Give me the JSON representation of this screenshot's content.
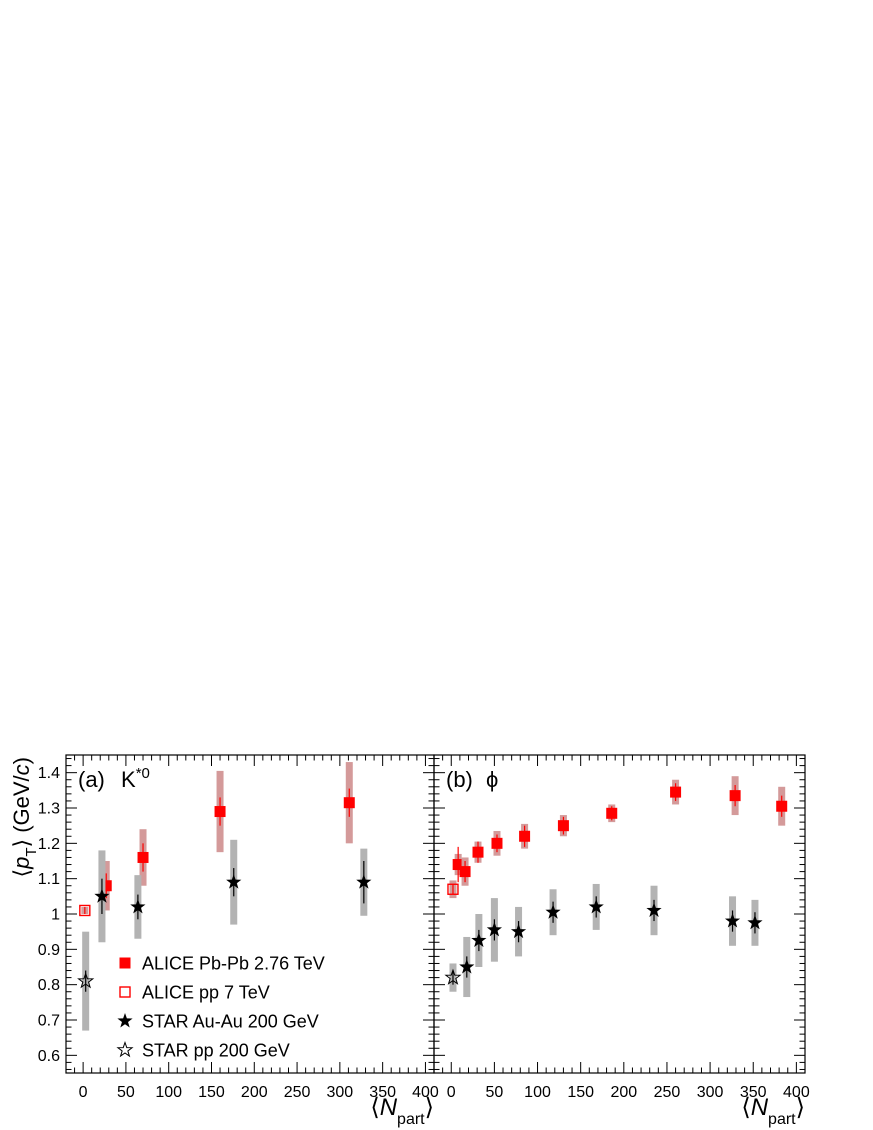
{
  "chart_data": [
    {
      "type": "scatter",
      "panel_label": "(a)",
      "particle": "K*0",
      "particle_base": "K",
      "particle_sup": "*0",
      "ylabel_parts": [
        "⟨",
        "p",
        "T",
        "⟩ (GeV/",
        "c",
        ")"
      ],
      "xlabel_parts": [
        "⟨",
        "N",
        "part",
        "⟩"
      ],
      "xlim": [
        -20,
        410
      ],
      "ylim": [
        0.55,
        1.45
      ],
      "xticks": [
        "0",
        "50",
        "100",
        "150",
        "200",
        "250",
        "300",
        "350",
        "400"
      ],
      "yticks": [
        "0.6",
        "0.7",
        "0.8",
        "0.9",
        "1",
        "1.1",
        "1.2",
        "1.3",
        "1.4"
      ],
      "legend": [
        {
          "marker": "filled-square",
          "color": "#ff0000",
          "label": "ALICE Pb-Pb 2.76 TeV"
        },
        {
          "marker": "open-square",
          "color": "#ff0000",
          "label": "ALICE pp 7 TeV"
        },
        {
          "marker": "filled-star",
          "color": "#000000",
          "label": "STAR Au-Au 200 GeV"
        },
        {
          "marker": "open-star",
          "color": "#000000",
          "label": "STAR pp 200 GeV"
        }
      ],
      "series": [
        {
          "name": "ALICE Pb-Pb 2.76 TeV",
          "marker": "filled-square",
          "color": "#ff0000",
          "syst_color": "#d49a9a",
          "points": [
            {
              "x": 27,
              "y": 1.08,
              "stat": 0.035,
              "syst": 0.07
            },
            {
              "x": 70,
              "y": 1.16,
              "stat": 0.04,
              "syst": 0.08
            },
            {
              "x": 160,
              "y": 1.29,
              "stat": 0.04,
              "syst": 0.115
            },
            {
              "x": 311,
              "y": 1.315,
              "stat": 0.04,
              "syst": 0.115
            }
          ]
        },
        {
          "name": "ALICE pp 7 TeV",
          "marker": "open-square",
          "color": "#ff0000",
          "syst_color": "#d49a9a",
          "points": [
            {
              "x": 2,
              "y": 1.01,
              "stat": 0.01,
              "syst": 0.01
            }
          ]
        },
        {
          "name": "STAR Au-Au 200 GeV",
          "marker": "filled-star",
          "color": "#000000",
          "syst_color": "#b3b3b3",
          "points": [
            {
              "x": 22,
              "y": 1.05,
              "stat": 0.05,
              "syst": 0.13
            },
            {
              "x": 64,
              "y": 1.02,
              "stat": 0.035,
              "syst": 0.09
            },
            {
              "x": 176,
              "y": 1.09,
              "stat": 0.04,
              "syst": 0.12
            },
            {
              "x": 328,
              "y": 1.09,
              "stat": 0.06,
              "syst": 0.095
            }
          ]
        },
        {
          "name": "STAR pp 200 GeV",
          "marker": "open-star",
          "color": "#000000",
          "syst_color": "#b3b3b3",
          "points": [
            {
              "x": 3,
              "y": 0.81,
              "stat": 0.03,
              "syst": 0.14
            }
          ]
        }
      ]
    },
    {
      "type": "scatter",
      "panel_label": "(b)",
      "particle": "ϕ",
      "xlabel_parts": [
        "⟨",
        "N",
        "part",
        "⟩"
      ],
      "xlim": [
        -20,
        410
      ],
      "ylim": [
        0.55,
        1.45
      ],
      "xticks": [
        "0",
        "50",
        "100",
        "150",
        "200",
        "250",
        "300",
        "350",
        "400"
      ],
      "series": [
        {
          "name": "ALICE Pb-Pb 2.76 TeV",
          "marker": "filled-square",
          "color": "#ff0000",
          "syst_color": "#d49a9a",
          "points": [
            {
              "x": 8,
              "y": 1.14,
              "stat": 0.05,
              "syst": 0.03
            },
            {
              "x": 16,
              "y": 1.12,
              "stat": 0.03,
              "syst": 0.04
            },
            {
              "x": 31,
              "y": 1.175,
              "stat": 0.03,
              "syst": 0.03
            },
            {
              "x": 53,
              "y": 1.2,
              "stat": 0.025,
              "syst": 0.035
            },
            {
              "x": 85,
              "y": 1.22,
              "stat": 0.03,
              "syst": 0.035
            },
            {
              "x": 130,
              "y": 1.25,
              "stat": 0.025,
              "syst": 0.03
            },
            {
              "x": 186,
              "y": 1.285,
              "stat": 0.02,
              "syst": 0.025
            },
            {
              "x": 260,
              "y": 1.345,
              "stat": 0.025,
              "syst": 0.035
            },
            {
              "x": 329,
              "y": 1.335,
              "stat": 0.03,
              "syst": 0.055
            },
            {
              "x": 383,
              "y": 1.305,
              "stat": 0.03,
              "syst": 0.055
            }
          ]
        },
        {
          "name": "ALICE pp 7 TeV",
          "marker": "open-square",
          "color": "#ff0000",
          "syst_color": "#d49a9a",
          "points": [
            {
              "x": 2,
              "y": 1.07,
              "stat": 0.015,
              "syst": 0.025
            }
          ]
        },
        {
          "name": "STAR Au-Au 200 GeV",
          "marker": "filled-star",
          "color": "#000000",
          "syst_color": "#b3b3b3",
          "points": [
            {
              "x": 18,
              "y": 0.85,
              "stat": 0.03,
              "syst": 0.085
            },
            {
              "x": 32,
              "y": 0.925,
              "stat": 0.03,
              "syst": 0.075
            },
            {
              "x": 50,
              "y": 0.955,
              "stat": 0.03,
              "syst": 0.09
            },
            {
              "x": 78,
              "y": 0.95,
              "stat": 0.03,
              "syst": 0.07
            },
            {
              "x": 118,
              "y": 1.005,
              "stat": 0.03,
              "syst": 0.065
            },
            {
              "x": 168,
              "y": 1.02,
              "stat": 0.03,
              "syst": 0.065
            },
            {
              "x": 235,
              "y": 1.01,
              "stat": 0.03,
              "syst": 0.07
            },
            {
              "x": 326,
              "y": 0.98,
              "stat": 0.03,
              "syst": 0.07
            },
            {
              "x": 352,
              "y": 0.975,
              "stat": 0.03,
              "syst": 0.065
            }
          ]
        },
        {
          "name": "STAR pp 200 GeV",
          "marker": "open-star",
          "color": "#000000",
          "syst_color": "#b3b3b3",
          "points": [
            {
              "x": 2,
              "y": 0.82,
              "stat": 0.02,
              "syst": 0.04
            }
          ]
        }
      ]
    }
  ]
}
